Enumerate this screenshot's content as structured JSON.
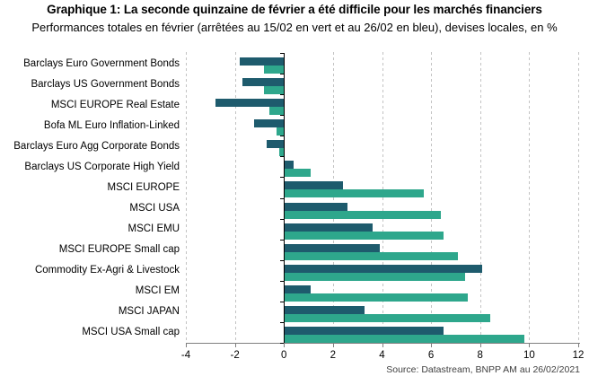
{
  "title": "Graphique 1: La seconde quinzaine de février a été difficile pour les marchés financiers",
  "subtitle": "Performances totales en février (arrêtées au 15/02 en vert et au 26/02 en bleu), devises locales, en %",
  "source": "Source: Datastream, BNPP AM au 26/02/2021",
  "colors": {
    "blue_26_02": "#1e5b6d",
    "green_15_02": "#2ea78c",
    "gridline": "#c3c3c3",
    "axis": "#7f7f7f"
  },
  "chart_data": {
    "type": "bar",
    "orientation": "horizontal",
    "title": "Graphique 1: La seconde quinzaine de février a été difficile pour les marchés financiers",
    "subtitle": "Performances totales en février (arrêtées au 15/02 en vert et au 26/02 en bleu), devises locales, en %",
    "xlabel": "",
    "ylabel": "",
    "xlim": [
      -4,
      12
    ],
    "xticks": [
      -4,
      -2,
      0,
      2,
      4,
      6,
      8,
      10,
      12
    ],
    "grid": "vertical-dashed",
    "legend_position": "none (series colors explained in subtitle: vert = au 15/02, bleu = au 26/02)",
    "categories": [
      "Barclays Euro Government Bonds",
      "Barclays US Government Bonds",
      "MSCI EUROPE Real Estate",
      "Bofa ML Euro Inflation-Linked",
      "Barclays Euro Agg Corporate Bonds",
      "Barclays US Corporate High Yield",
      "MSCI EUROPE",
      "MSCI USA",
      "MSCI EMU",
      "MSCI EUROPE Small cap",
      "Commodity Ex-Agri & Livestock",
      "MSCI EM",
      "MSCI JAPAN",
      "MSCI USA Small cap"
    ],
    "series": [
      {
        "name": "au 26/02 (bleu)",
        "color": "#1e5b6d",
        "values": [
          -1.8,
          -1.7,
          -2.8,
          -1.2,
          -0.7,
          0.4,
          2.4,
          2.6,
          3.6,
          3.9,
          8.1,
          1.1,
          3.3,
          6.5
        ]
      },
      {
        "name": "au 15/02 (vert)",
        "color": "#2ea78c",
        "values": [
          -0.8,
          -0.8,
          -0.6,
          -0.3,
          -0.2,
          1.1,
          5.7,
          6.4,
          6.5,
          7.1,
          7.4,
          7.5,
          8.4,
          9.8
        ]
      }
    ]
  }
}
